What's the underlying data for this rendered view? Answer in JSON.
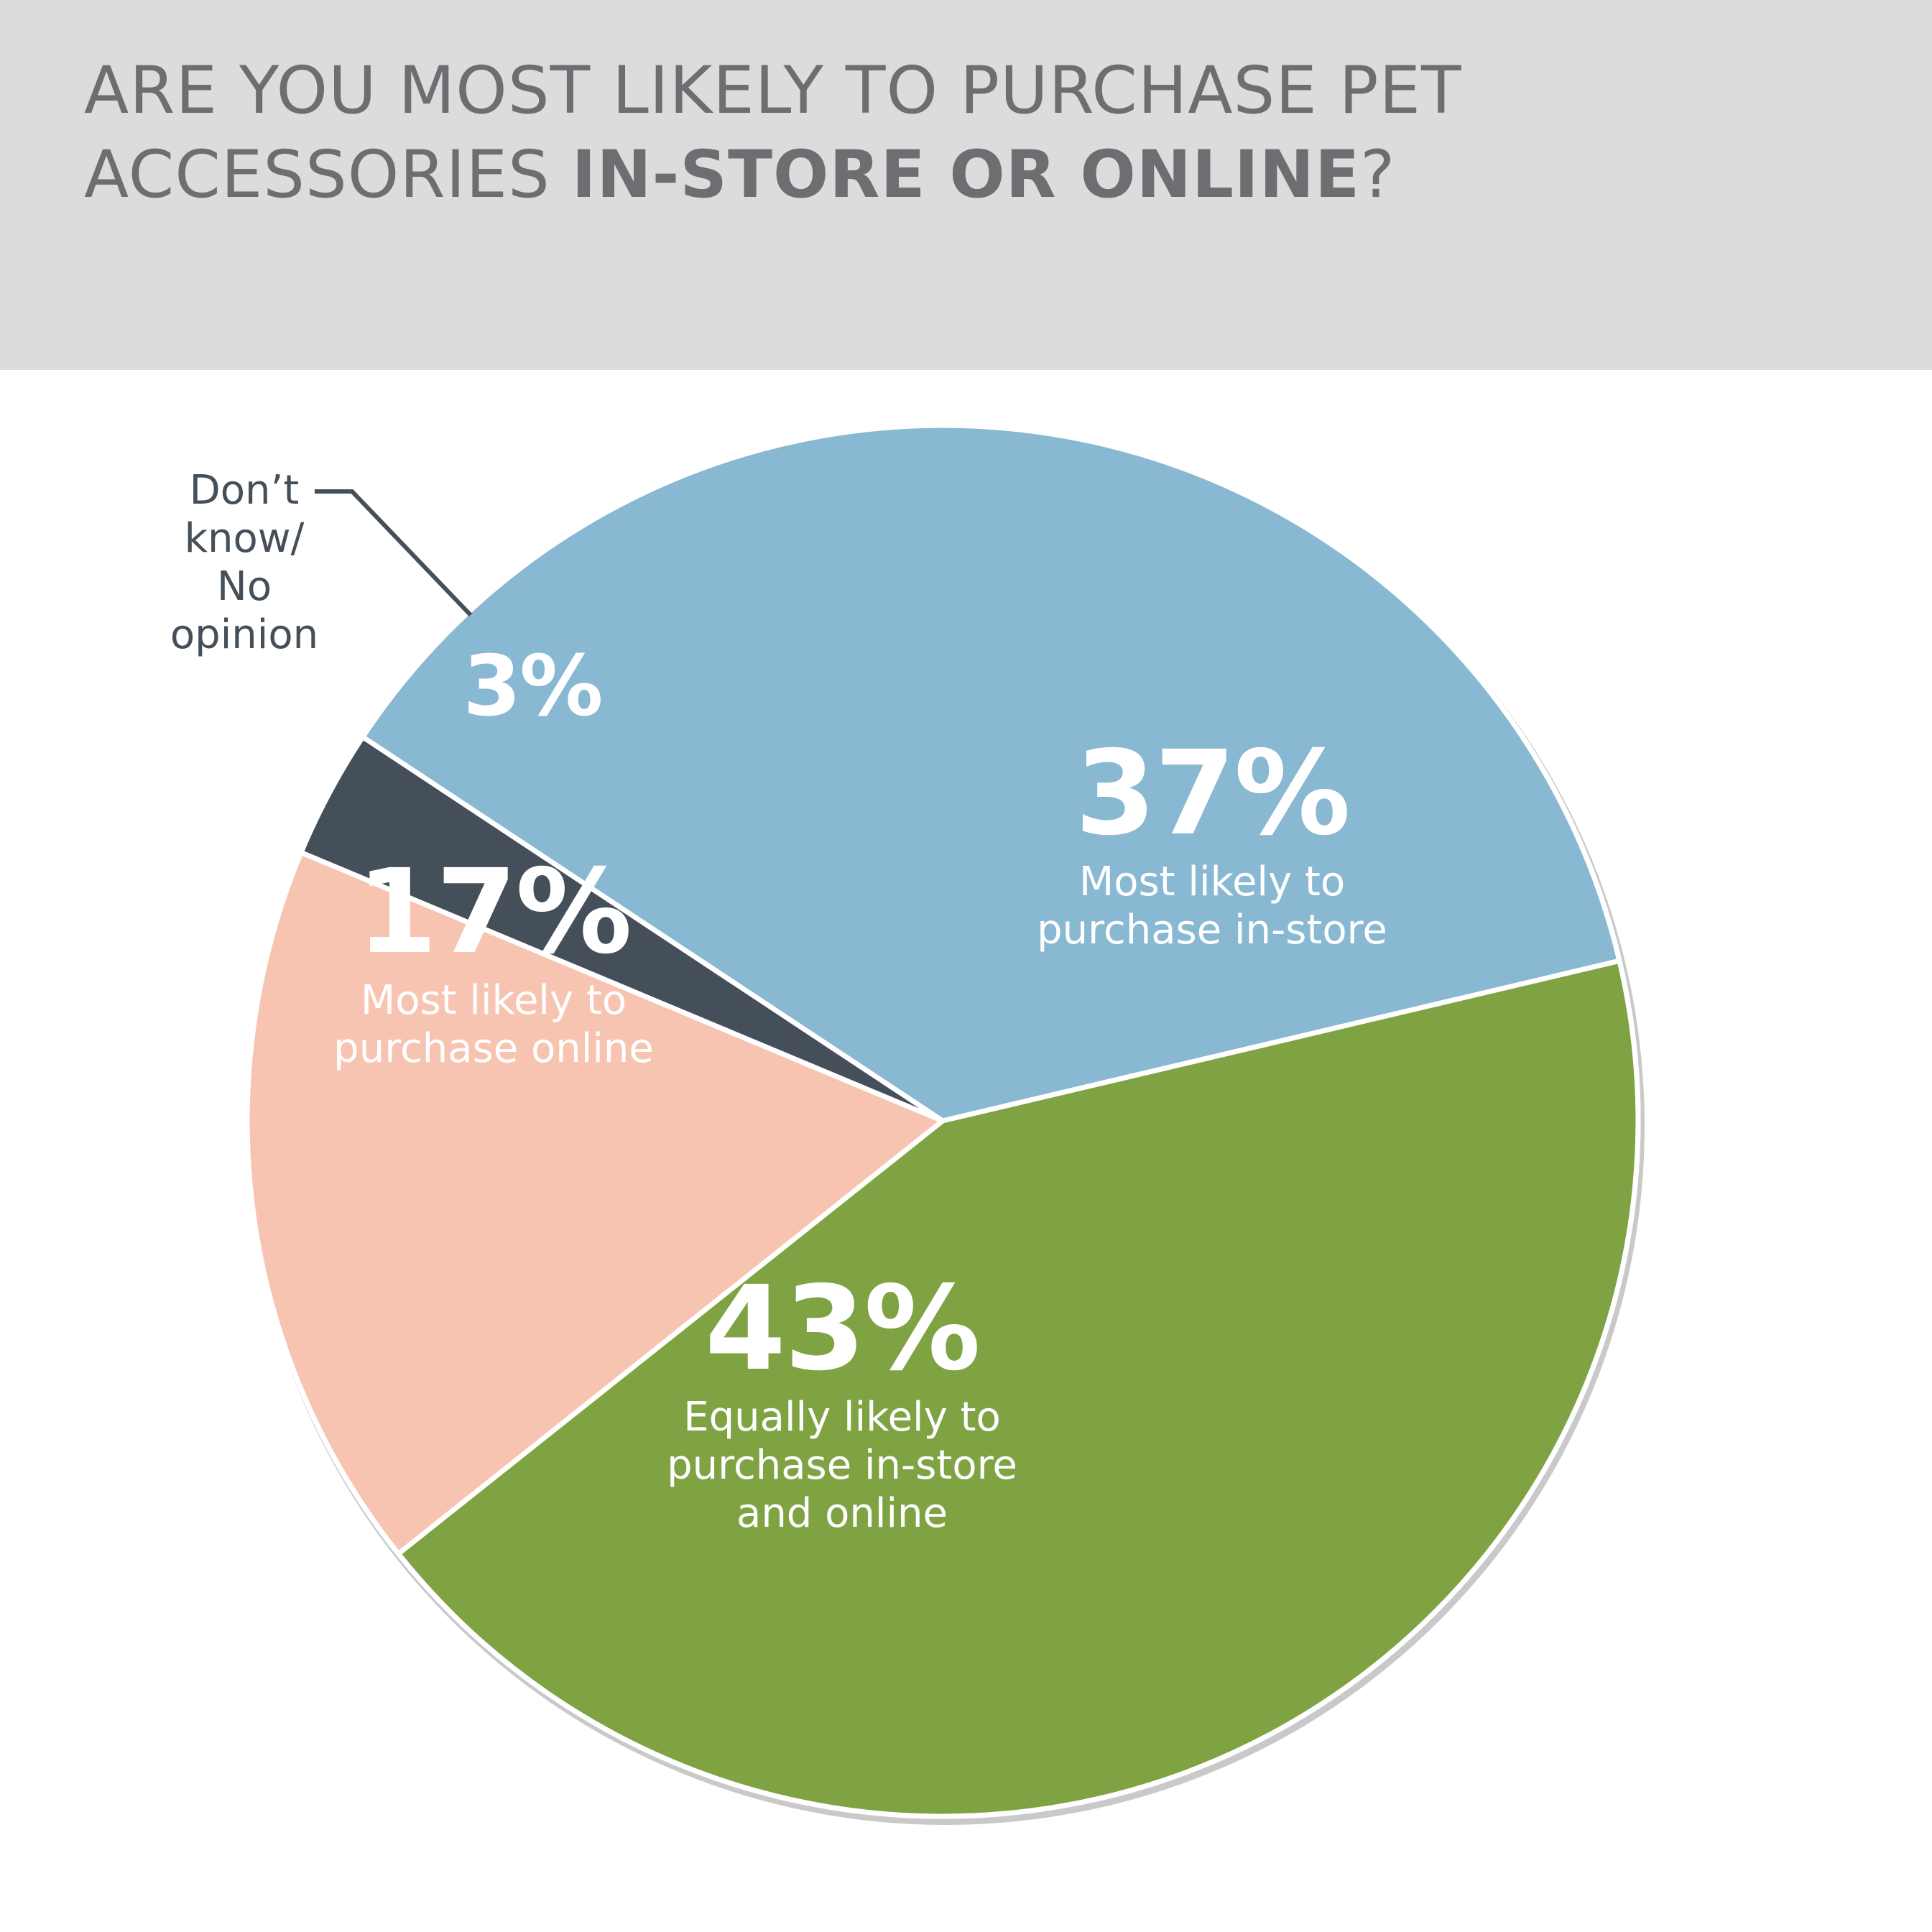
{
  "header": {
    "title_line1": "ARE YOU MOST LIKELY TO PURCHASE PET",
    "title_line2_regular": "ACCESSORIES ",
    "title_line2_bold": "IN-STORE OR ONLINE",
    "title_line2_end": "?"
  },
  "colors": {
    "header_bg": "#dcdcdc",
    "title_text": "#6d6e71",
    "in_store": "#88b8d2",
    "equally": "#7fa242",
    "online": "#f8c4b2",
    "dont_know": "#454f5a",
    "slice_border": "#ffffff",
    "label_text": "#ffffff",
    "callout_text": "#454f5a"
  },
  "chart_data": {
    "type": "pie",
    "title": "ARE YOU MOST LIKELY TO PURCHASE PET ACCESSORIES IN-STORE OR ONLINE?",
    "unit": "%",
    "slices": [
      {
        "value": 37,
        "percent_label": "37%",
        "label_lines": [
          "Most likely to",
          "purchase in-store"
        ],
        "color": "#88b8d2"
      },
      {
        "value": 43,
        "percent_label": "43%",
        "label_lines": [
          "Equally likely to",
          "purchase in-store",
          "and online"
        ],
        "color": "#7fa242"
      },
      {
        "value": 17,
        "percent_label": "17%",
        "label_lines": [
          "Most likely to",
          "purchase online"
        ],
        "color": "#f8c4b2"
      },
      {
        "value": 3,
        "percent_label": "3%",
        "label_lines": [
          "Don’t",
          "know/",
          "No",
          "opinion"
        ],
        "color": "#454f5a"
      }
    ]
  }
}
